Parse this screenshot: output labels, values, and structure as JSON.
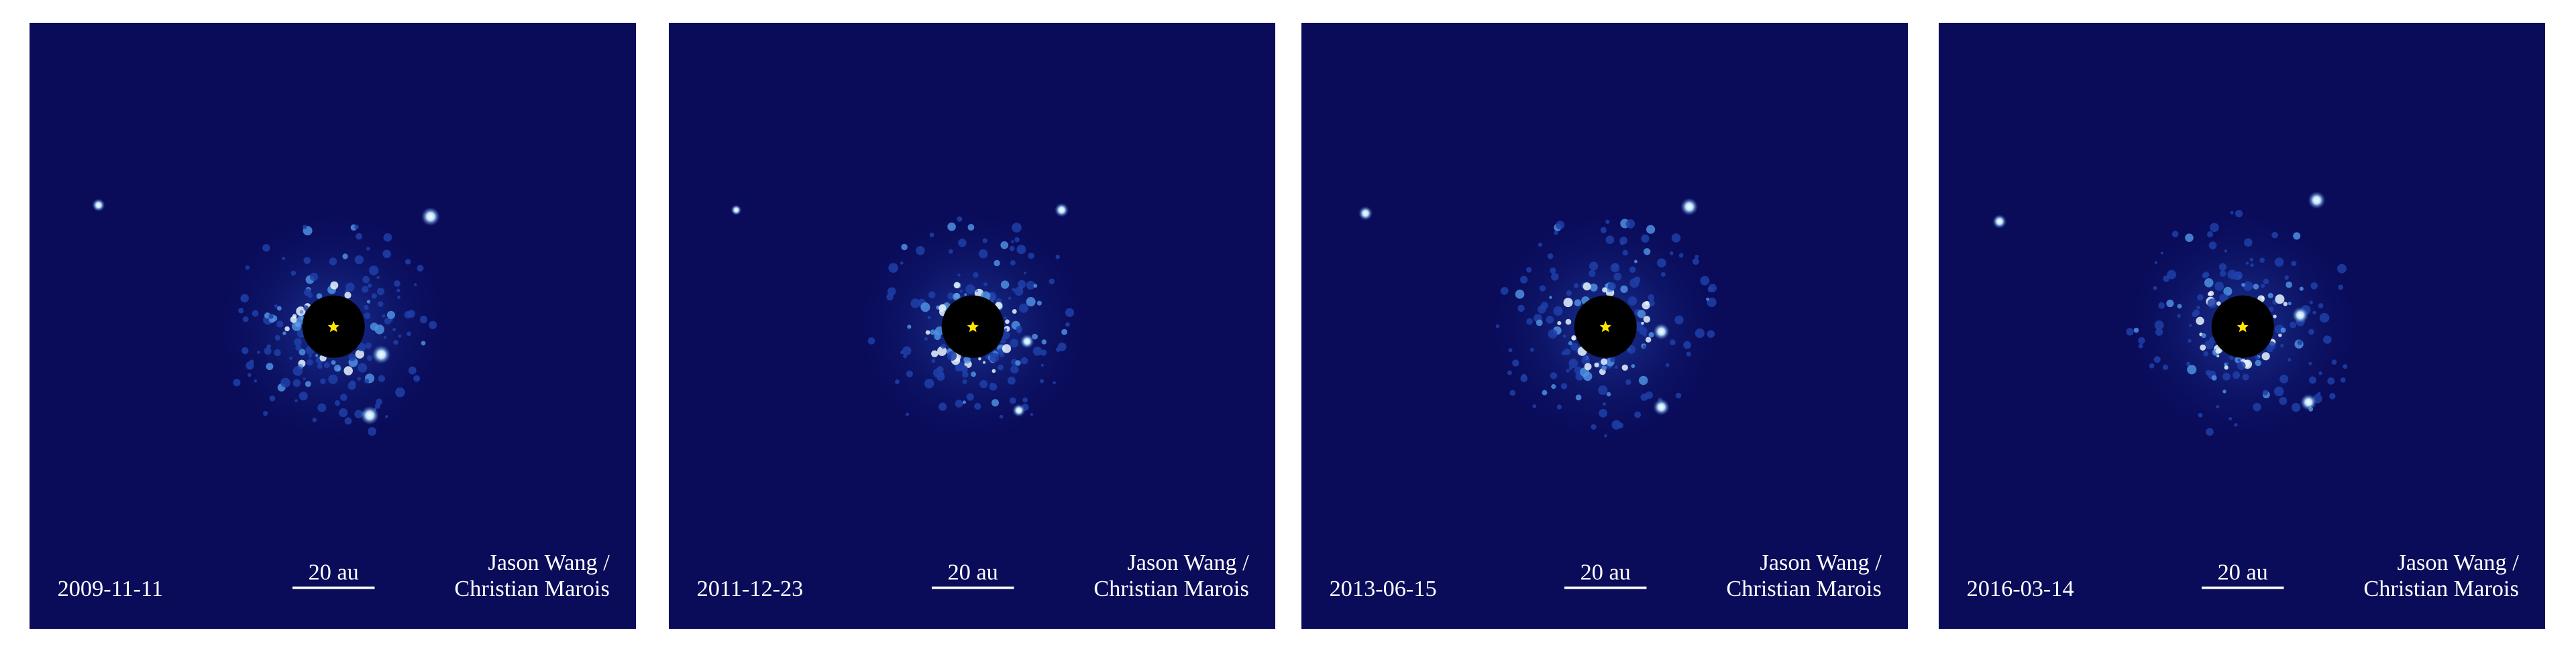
{
  "panels": [
    {
      "date": "2009-11-11",
      "scale_label": "20 au",
      "credit": [
        "Jason Wang /",
        "Christian Marois"
      ]
    },
    {
      "date": "2011-12-23",
      "scale_label": "20 au",
      "credit": [
        "Jason Wang /",
        "Christian Marois"
      ]
    },
    {
      "date": "2013-06-15",
      "scale_label": "20 au",
      "credit": [
        "Jason Wang /",
        "Christian Marois"
      ]
    },
    {
      "date": "2016-03-14",
      "scale_label": "20 au",
      "credit": [
        "Jason Wang /",
        "Christian Marois"
      ]
    }
  ]
}
